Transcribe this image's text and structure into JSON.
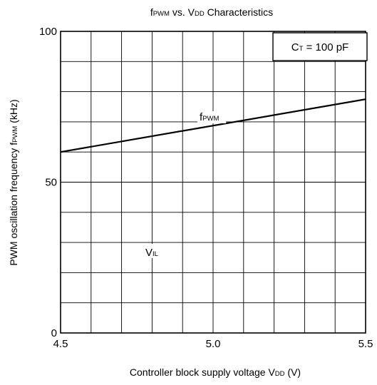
{
  "chart_data": {
    "type": "line",
    "title": {
      "main": "f",
      "sub": "PWM",
      "rest": " vs. V",
      "sub2": "DD",
      "tail": " Characteristics"
    },
    "xlabel": {
      "main": "Controller block supply voltage V",
      "sub": "DD",
      "tail": " (V)"
    },
    "ylabel": {
      "main": "PWM oscillation frequency f",
      "sub": "PWM",
      "tail": " (kHz)"
    },
    "xlim": [
      4.5,
      5.5
    ],
    "ylim": [
      0,
      100
    ],
    "x_ticks": [
      4.5,
      5.0,
      5.5
    ],
    "x_tick_labels": [
      "4.5",
      "5.0",
      "5.5"
    ],
    "y_ticks": [
      0,
      50,
      100
    ],
    "y_tick_labels": [
      "0",
      "50",
      "100"
    ],
    "grid": true,
    "x_grid_step": 0.1,
    "y_grid_step": 10,
    "series": [
      {
        "name": {
          "main": "f",
          "sub": "PWM"
        },
        "x": [
          4.5,
          5.5
        ],
        "y": [
          60,
          77.5
        ],
        "color": "#000000"
      }
    ],
    "annotations": [
      {
        "id": "ct",
        "main": "C",
        "sub": "T",
        "tail": " = 100 pF",
        "boxed": true
      },
      {
        "id": "vil",
        "main": "V",
        "sub": "IL",
        "x": 4.78,
        "y": 25
      }
    ]
  }
}
